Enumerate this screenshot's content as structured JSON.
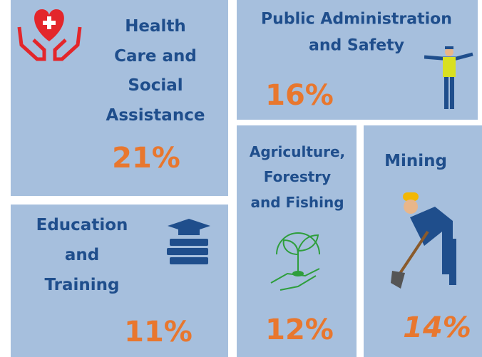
{
  "tiles": [
    {
      "title_lines": [
        "Health",
        "Care and",
        "Social",
        "Assistance"
      ],
      "value": "21%"
    },
    {
      "title_lines": [
        "Public Administration",
        "and Safety"
      ],
      "value": "16%"
    },
    {
      "title_lines": [
        "Agriculture,",
        "Forestry",
        "and Fishing"
      ],
      "value": "12%"
    },
    {
      "title_lines": [
        "Mining"
      ],
      "value": "14%"
    },
    {
      "title_lines": [
        "Education",
        "and",
        "Training"
      ],
      "value": "11%"
    }
  ]
}
